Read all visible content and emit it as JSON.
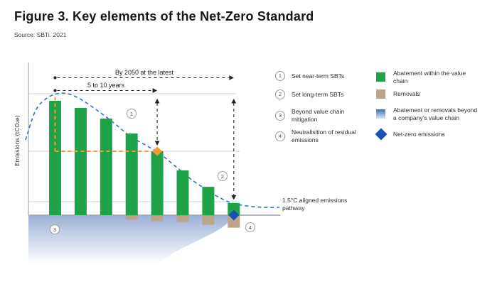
{
  "header": {
    "title": "Figure 3. Key elements of the Net-Zero Standard",
    "source": "Source: SBTi. 2021"
  },
  "colors": {
    "abatement_green": "#1fa348",
    "removals_tan": "#bda38b",
    "net_zero_blue": "#1553b2",
    "pathway_blue": "#2f6fd2",
    "target_orange": "#f79b2e",
    "beyond_value_chain_top": "#9db1d6",
    "beyond_value_chain_bottom": "#ffffff"
  },
  "steps": [
    {
      "num": "1",
      "label": "Set near-term SBTs"
    },
    {
      "num": "2",
      "label": "Set long-term SBTs"
    },
    {
      "num": "3",
      "label": "Beyond value chain mitigation"
    },
    {
      "num": "4",
      "label": "Neutralisition of residual emissions"
    }
  ],
  "legend": [
    {
      "swatch": "green-square",
      "label": "Abatement within the value chain"
    },
    {
      "swatch": "tan-square",
      "label": "Removals"
    },
    {
      "swatch": "blue-gradient-square",
      "label": "Abatement or removals beyond a company’s value chain"
    },
    {
      "swatch": "blue-diamond",
      "label": "Net-zero emissions"
    }
  ],
  "chart_data": {
    "type": "bar",
    "title": "",
    "ylabel": "Emissions (tCO₂e)",
    "xlabel": "",
    "value_note": "relative units, first bar = 100; x categories are unlabeled time steps to 2050",
    "grid": true,
    "gridline_values": [
      106.2,
      55.9,
      11.8
    ],
    "series": [
      {
        "name": "Abatement within the value chain",
        "values": [
          100,
          93.8,
          84.5,
          71.4,
          55.9,
          39.1,
          24.8,
          10.6
        ]
      },
      {
        "name": "Removals",
        "values": [
          0,
          0,
          0,
          -3.7,
          -5.0,
          -5.6,
          -8.1,
          -10.6
        ]
      }
    ],
    "pathway": {
      "name": "1.5°C aligned emissions pathway",
      "points": [
        [
          -1.16,
          65.8
        ],
        [
          -0.77,
          91.3
        ],
        [
          -0.35,
          101.9
        ],
        [
          0.07,
          106.2
        ],
        [
          0.49,
          106.2
        ],
        [
          0.96,
          101.9
        ],
        [
          1.6,
          92.5
        ],
        [
          2.3,
          80.7
        ],
        [
          3.0,
          68.3
        ],
        [
          4.0,
          55.3
        ],
        [
          4.67,
          43.5
        ],
        [
          5.31,
          31.7
        ],
        [
          5.92,
          22.4
        ],
        [
          6.48,
          14.9
        ],
        [
          7.03,
          9.9
        ],
        [
          7.73,
          7.5
        ],
        [
          8.29,
          6.8
        ],
        [
          8.79,
          6.8
        ]
      ]
    },
    "annotations": {
      "by2050": {
        "label": "By 2050 at the latest",
        "from_bar": 0,
        "to_bar": 7
      },
      "near_term_window": {
        "label": "5 to 10 years",
        "from_bar": 0,
        "to_bar": 4
      },
      "near_term_target_marker": {
        "bar": 4,
        "shape": "orange-diamond"
      },
      "net_zero_marker": {
        "bar": 7,
        "shape": "blue-diamond",
        "value": 0
      },
      "step_refs_in_chart": [
        "1",
        "2",
        "3",
        "4"
      ]
    },
    "legend_position": "right"
  }
}
